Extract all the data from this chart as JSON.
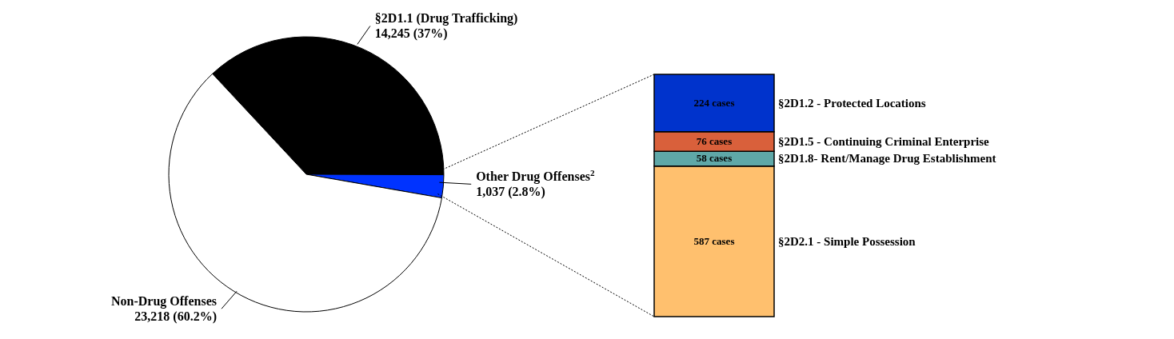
{
  "chart_data": [
    {
      "type": "pie",
      "categories": [
        "§2D1.1 (Drug Trafficking)",
        "Other Drug Offenses$^{2}$",
        "Non-Drug Offenses"
      ],
      "values": [
        14245,
        1037,
        23218
      ],
      "value_labels": [
        "14,245  (37%)",
        "1,037  (2.8%)",
        "23,218  (60.2%)"
      ],
      "colors": [
        "#000000",
        "#0033ff",
        "#ffffff"
      ]
    },
    {
      "type": "bar",
      "stacked": true,
      "categories": [
        null
      ],
      "series": [
        {
          "name": "§2D2.1 - Simple Possession",
          "color": "#ffc06e",
          "values": [
            587
          ],
          "value_labels": [
            "587 cases"
          ]
        },
        {
          "name": "§2D1.8- Rent/Manage Drug Establishment",
          "color": "#5fa8a8",
          "values": [
            58
          ],
          "value_labels": [
            "58 cases"
          ]
        },
        {
          "name": "§2D1.5 - Continuing Criminal Enterprise",
          "color": "#d9603b",
          "values": [
            76
          ],
          "value_labels": [
            "76 cases"
          ]
        },
        {
          "name": "§2D1.2 - Protected Locations",
          "color": "#0033cc",
          "values": [
            224
          ],
          "value_labels": [
            "224 cases"
          ]
        }
      ]
    }
  ]
}
